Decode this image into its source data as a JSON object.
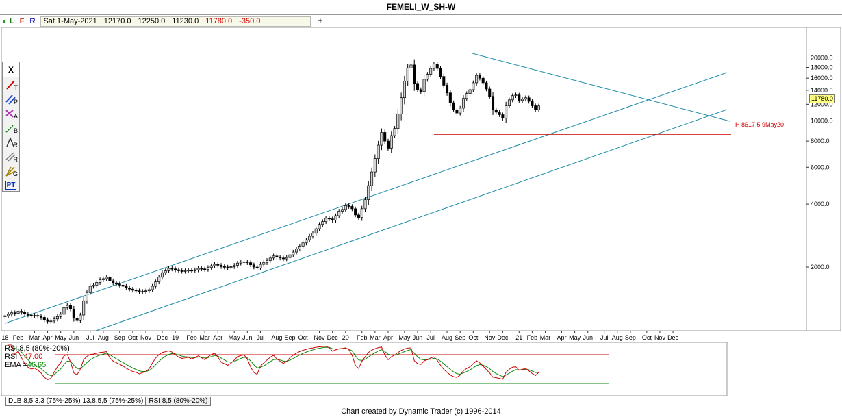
{
  "window": {
    "title": "FEMELI_W_SH-W"
  },
  "infobar": {
    "toggles": [
      "L",
      "F",
      "R"
    ],
    "date": "Sat 1-May-2021",
    "open": "12170.0",
    "high": "12250.0",
    "low": "11230.0",
    "close": "11780.0",
    "change": "-350.0",
    "plus": "+"
  },
  "toolbox": {
    "close_label": "X",
    "tools": [
      {
        "icon": "trendline-tool-icon",
        "sub": "T"
      },
      {
        "icon": "parallel-tool-icon",
        "sub": "P"
      },
      {
        "icon": "alternate-price-icon",
        "sub": "A"
      },
      {
        "icon": "time-band-icon",
        "sub": "B"
      },
      {
        "icon": "ratio-tool-icon",
        "sub": "R"
      },
      {
        "icon": "retracement-tool-icon",
        "sub": "R"
      },
      {
        "icon": "gann-fan-icon",
        "sub": "G"
      },
      {
        "icon": "price-time-icon",
        "sub": "PT"
      }
    ]
  },
  "price_tag": "11780.0",
  "hline_label": "H 8617.5 9May20",
  "indicator": {
    "line1": "RSI 8,5 (80%-20%)",
    "rsi_label": "RSI =",
    "rsi_value": "47.00",
    "ema_label": "EMA =",
    "ema_value": "46.65"
  },
  "tabs": [
    "DLB 8,5,3,3 (75%-25%) 13,8,5,5 (75%-25%)",
    "RSI 8,5 (80%-20%)"
  ],
  "footer": "Chart created by Dynamic Trader  (c)  1996-2014",
  "colors": {
    "up": "#d4d4d4",
    "down": "#000000",
    "channel": "#1b8aa5",
    "hline": "#cc0000",
    "rsi": "#cc0000",
    "ema": "#0a8a0a"
  },
  "chart_data": {
    "type": "candlestick",
    "y_scale": "log",
    "ylim": [
      1000,
      23000
    ],
    "y_ticks": [
      "20000.0",
      "18000.0",
      "16000.0",
      "14000.0",
      "12000.0",
      "10000.0",
      "8000.0",
      "6000.0",
      "4000.0",
      "2000.0"
    ],
    "y_tick_values": [
      20000,
      18000,
      16000,
      14000,
      12000,
      10000,
      8000,
      6000,
      4000,
      2000
    ],
    "x_labels": [
      "18",
      "Feb",
      "Mar",
      "Apr",
      "May",
      "Jun",
      "Jul",
      "Aug",
      "Sep",
      "Oct",
      "Nov",
      "Dec",
      "19",
      "Feb",
      "Mar",
      "Apr",
      "May",
      "Jun",
      "Jul",
      "Aug",
      "Sep",
      "Oct",
      "Nov",
      "Dec",
      "20",
      "Feb",
      "Mar",
      "Apr",
      "May",
      "Jun",
      "Jul",
      "Aug",
      "Sep",
      "Oct",
      "Nov",
      "Dec",
      "21",
      "Feb",
      "Mar",
      "Apr",
      "May",
      "Jun",
      "Jul",
      "Aug",
      "Sep",
      "Oct",
      "Nov",
      "Dec"
    ],
    "x_label_week_index": [
      0,
      4,
      9,
      13,
      17,
      21,
      26,
      30,
      35,
      39,
      43,
      48,
      52,
      57,
      61,
      65,
      70,
      74,
      78,
      83,
      87,
      91,
      96,
      100,
      104,
      109,
      113,
      117,
      122,
      126,
      130,
      135,
      139,
      143,
      148,
      152,
      157,
      161,
      165,
      170,
      174,
      178,
      183,
      187,
      191,
      196,
      200,
      204
    ],
    "weekly_closes": [
      1170,
      1190,
      1210,
      1200,
      1230,
      1215,
      1195,
      1180,
      1170,
      1175,
      1165,
      1150,
      1120,
      1100,
      1105,
      1130,
      1160,
      1190,
      1280,
      1310,
      1260,
      1140,
      1110,
      1180,
      1380,
      1510,
      1620,
      1640,
      1690,
      1740,
      1760,
      1790,
      1720,
      1680,
      1660,
      1640,
      1620,
      1590,
      1570,
      1550,
      1540,
      1520,
      1530,
      1540,
      1560,
      1620,
      1700,
      1790,
      1880,
      1920,
      1970,
      1960,
      1940,
      1920,
      1910,
      1920,
      1930,
      1920,
      1940,
      1970,
      1960,
      1950,
      1990,
      2030,
      2060,
      2040,
      2010,
      2000,
      1990,
      2010,
      2040,
      2090,
      2110,
      2120,
      2100,
      2050,
      2000,
      1980,
      2060,
      2100,
      2150,
      2210,
      2260,
      2230,
      2210,
      2190,
      2220,
      2290,
      2360,
      2440,
      2520,
      2610,
      2700,
      2810,
      2900,
      3050,
      3200,
      3300,
      3420,
      3400,
      3350,
      3520,
      3700,
      3770,
      3930,
      3900,
      3800,
      3550,
      3450,
      3800,
      4200,
      4900,
      5700,
      6600,
      7650,
      8800,
      8000,
      7400,
      8500,
      9200,
      10800,
      12900,
      15500,
      17900,
      18500,
      15100,
      14100,
      13800,
      15800,
      16700,
      17800,
      18700,
      17800,
      16300,
      14800,
      13600,
      12200,
      11300,
      10900,
      11500,
      12800,
      13500,
      14100,
      15200,
      16500,
      16000,
      15200,
      14200,
      13100,
      11300,
      11000,
      10700,
      10300,
      11800,
      12600,
      13200,
      13300,
      12500,
      12700,
      12900,
      12400,
      11800,
      11300,
      11780
    ],
    "hline": {
      "label": "H 8617.5 9May20",
      "value": 8617.5
    },
    "rsi": {
      "name": "RSI 8,5 (80%-20%)",
      "value": 47.0,
      "ema": 46.65,
      "upper": 80,
      "lower": 20
    }
  }
}
